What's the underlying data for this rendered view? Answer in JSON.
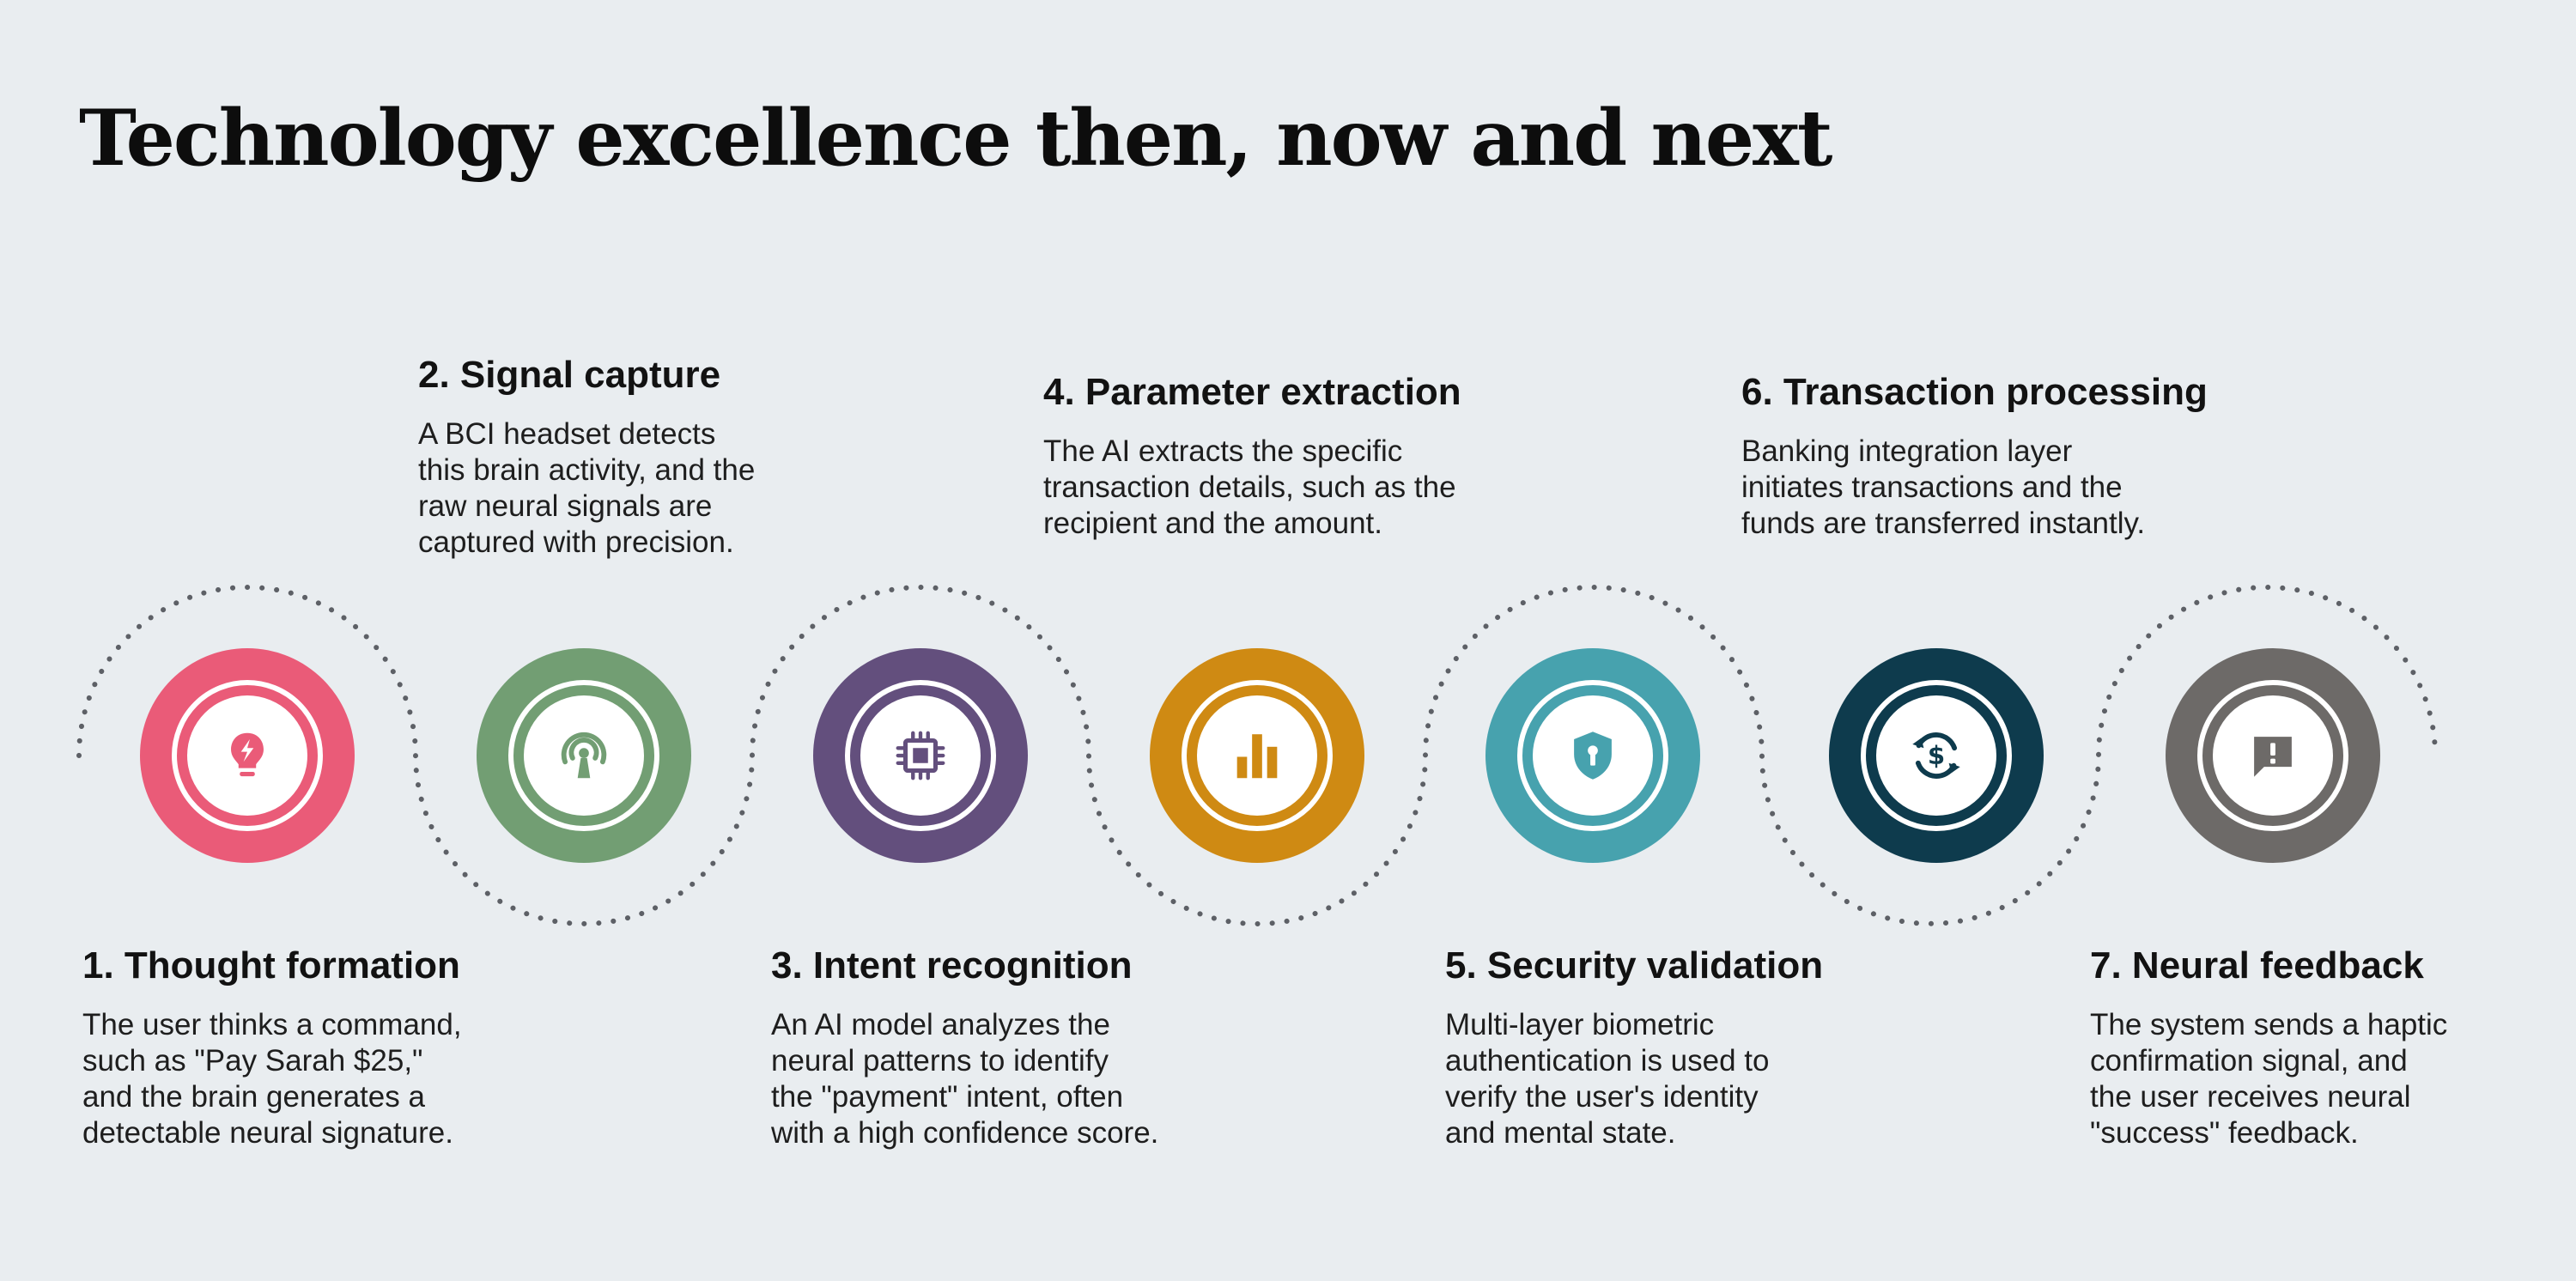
{
  "title": "Technology excellence then, now and next",
  "steps": [
    {
      "title": "1. Thought formation",
      "description": "The user thinks a command,\nsuch as \"Pay Sarah $25,\"\nand the brain generates a\ndetectable neural signature.",
      "icon": "lightbulb-icon",
      "color": "#ea5b78"
    },
    {
      "title": "2. Signal capture",
      "description": "A BCI headset detects\nthis brain activity, and the\nraw neural signals are\ncaptured with precision.",
      "icon": "antenna-signal-icon",
      "color": "#729e73"
    },
    {
      "title": "3. Intent recognition",
      "description": "An AI model analyzes the\nneural patterns to identify\nthe \"payment\" intent, often\nwith a high confidence score.",
      "icon": "chip-icon",
      "color": "#634f7d"
    },
    {
      "title": "4. Parameter extraction",
      "description": "The AI extracts the specific\ntransaction details, such as the\nrecipient and the amount.",
      "icon": "bar-chart-icon",
      "color": "#cf8a13"
    },
    {
      "title": "5. Security validation",
      "description": "Multi-layer biometric\nauthentication is used to\nverify the user's identity\nand mental state.",
      "icon": "shield-lock-icon",
      "color": "#47a2ae"
    },
    {
      "title": "6. Transaction processing",
      "description": "Banking integration layer\ninitiates transactions and the\nfunds are transferred instantly.",
      "icon": "currency-exchange-icon",
      "color": "#0e3b4d"
    },
    {
      "title": "7. Neural feedback",
      "description": "The system sends a haptic\nconfirmation signal, and\nthe user receives neural\n\"success\" feedback.",
      "icon": "alert-message-icon",
      "color": "#6d6a68"
    }
  ],
  "colors": {
    "background": "#e9edf0",
    "connector": "#5d6066",
    "title_text": "#0d0d0d"
  }
}
